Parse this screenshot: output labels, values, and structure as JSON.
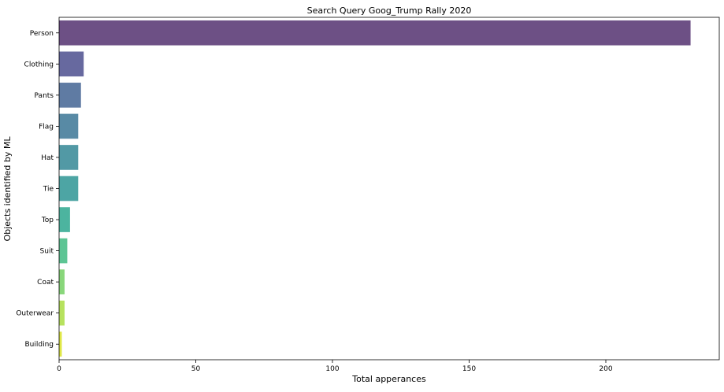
{
  "chart_data": {
    "type": "bar",
    "orientation": "horizontal",
    "title": "Search Query Goog_Trump Rally 2020",
    "xlabel": "Total apperances",
    "ylabel": "Objects identified by ML",
    "categories": [
      "Person",
      "Clothing",
      "Pants",
      "Flag",
      "Hat",
      "Tie",
      "Top",
      "Suit",
      "Coat",
      "Outerwear",
      "Building"
    ],
    "values": [
      231,
      9,
      8,
      7,
      7,
      7,
      4,
      3,
      2,
      2,
      1
    ],
    "colors": [
      "#482466",
      "#414487",
      "#375a8c",
      "#2e6d8e",
      "#277f8e",
      "#218f8d",
      "#1fa187",
      "#35b779",
      "#6ccd5a",
      "#a5db36",
      "#d8e219"
    ],
    "bar_alpha": 0.8,
    "xlim": [
      0,
      241.5
    ],
    "xticks": [
      0,
      50,
      100,
      150,
      200
    ],
    "grid": false,
    "legend": "none"
  }
}
